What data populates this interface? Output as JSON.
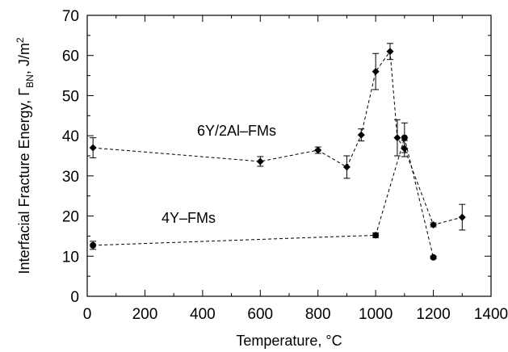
{
  "chart_data": {
    "type": "scatter",
    "title": "",
    "xlabel": "Temperature, °C",
    "ylabel": "Interfacial Fracture Energy, Γ",
    "ylabel_subscript": "BN",
    "ylabel_unit": ", J/m",
    "ylabel_unit_power": "2",
    "xlim": [
      0,
      1400
    ],
    "ylim": [
      0,
      70
    ],
    "xticks": [
      0,
      200,
      400,
      600,
      800,
      1000,
      1200,
      1400
    ],
    "yticks": [
      0,
      10,
      20,
      30,
      40,
      50,
      60,
      70
    ],
    "grid": false,
    "legend": "none",
    "series": [
      {
        "name": "6Y/2Al–FMs",
        "marker": "diamond",
        "color": "#000000",
        "line_style": "dashed",
        "points": [
          {
            "x": 20,
            "y": 37,
            "err": 2.5
          },
          {
            "x": 600,
            "y": 33.6,
            "err": 1.2
          },
          {
            "x": 800,
            "y": 36.4,
            "err": 0.8
          },
          {
            "x": 900,
            "y": 32.2,
            "err": 2.8
          },
          {
            "x": 950,
            "y": 40.2,
            "err": 1.5
          },
          {
            "x": 1000,
            "y": 56,
            "err": 4.5
          },
          {
            "x": 1050,
            "y": 61,
            "err": 2
          },
          {
            "x": 1075,
            "y": 39.5,
            "err": 4.5
          },
          {
            "x": 1100,
            "y": 36.8,
            "err": 2
          },
          {
            "x": 1200,
            "y": 17.8,
            "err": 0.5
          },
          {
            "x": 1300,
            "y": 19.7,
            "err": 3.2
          }
        ]
      },
      {
        "name": "4Y–FMs",
        "marker": "circle",
        "color": "#000000",
        "line_style": "dashed",
        "points": [
          {
            "x": 20,
            "y": 12.7,
            "err": 1
          },
          {
            "x": 1000,
            "y": 15.2,
            "err": 0.6
          },
          {
            "x": 1100,
            "y": 39.5,
            "err": 3.7
          },
          {
            "x": 1200,
            "y": 9.7,
            "err": 0.3
          }
        ]
      }
    ]
  }
}
